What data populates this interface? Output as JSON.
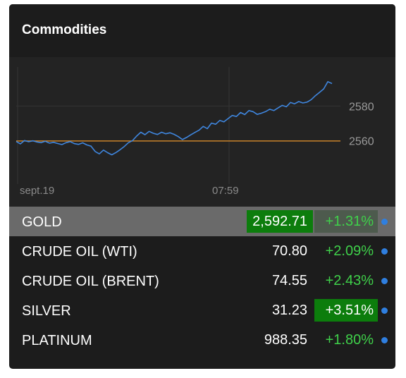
{
  "widget": {
    "title": "Commodities"
  },
  "chart_data": {
    "type": "line",
    "x_tick_labels": [
      "sept.19",
      "07:59"
    ],
    "y_tick_labels": [
      "2580",
      "2560"
    ],
    "y_ticks": [
      2580,
      2560
    ],
    "ylim": [
      2535,
      2605
    ],
    "reference_line": 2559.9,
    "series": [
      {
        "color": "#3f86de",
        "values": [
          2559.6,
          2558.2,
          2560.1,
          2559.4,
          2560.0,
          2559.3,
          2558.9,
          2559.7,
          2558.6,
          2559.1,
          2558.4,
          2557.8,
          2558.9,
          2559.5,
          2558.3,
          2557.9,
          2558.8,
          2557.6,
          2556.9,
          2553.8,
          2552.4,
          2554.6,
          2553.1,
          2551.9,
          2553.2,
          2554.8,
          2556.7,
          2558.9,
          2560.1,
          2562.7,
          2564.9,
          2563.5,
          2565.4,
          2564.3,
          2563.6,
          2564.9,
          2564.0,
          2564.6,
          2563.7,
          2562.4,
          2560.7,
          2561.9,
          2563.4,
          2564.8,
          2566.1,
          2568.3,
          2567.0,
          2570.2,
          2569.5,
          2571.7,
          2570.9,
          2572.8,
          2574.6,
          2574.0,
          2576.3,
          2575.1,
          2577.4,
          2576.8,
          2575.2,
          2575.9,
          2576.8,
          2578.2,
          2577.4,
          2578.9,
          2580.4,
          2579.6,
          2582.1,
          2581.3,
          2582.6,
          2581.8,
          2582.3,
          2583.7,
          2586.0,
          2587.9,
          2589.9,
          2594.1,
          2593.0
        ]
      }
    ],
    "line_color": "#3f86de",
    "reference_color": "#c8822a",
    "grid": true
  },
  "rows": [
    {
      "name": "GOLD",
      "price": "2,592.71",
      "change": "+1.31%",
      "selected": true,
      "price_flash": true,
      "change_flash": false
    },
    {
      "name": "CRUDE OIL (WTI)",
      "price": "70.80",
      "change": "+2.09%",
      "selected": false,
      "price_flash": false,
      "change_flash": false
    },
    {
      "name": "CRUDE OIL (BRENT)",
      "price": "74.55",
      "change": "+2.43%",
      "selected": false,
      "price_flash": false,
      "change_flash": false
    },
    {
      "name": "SILVER",
      "price": "31.23",
      "change": "+3.51%",
      "selected": false,
      "price_flash": false,
      "change_flash": true
    },
    {
      "name": "PLATINUM",
      "price": "988.35",
      "change": "+1.80%",
      "selected": false,
      "price_flash": false,
      "change_flash": false
    }
  ],
  "colors": {
    "positive": "#3fd04a",
    "flash": "#0c7d0c",
    "dot": "#2f7fe0"
  }
}
